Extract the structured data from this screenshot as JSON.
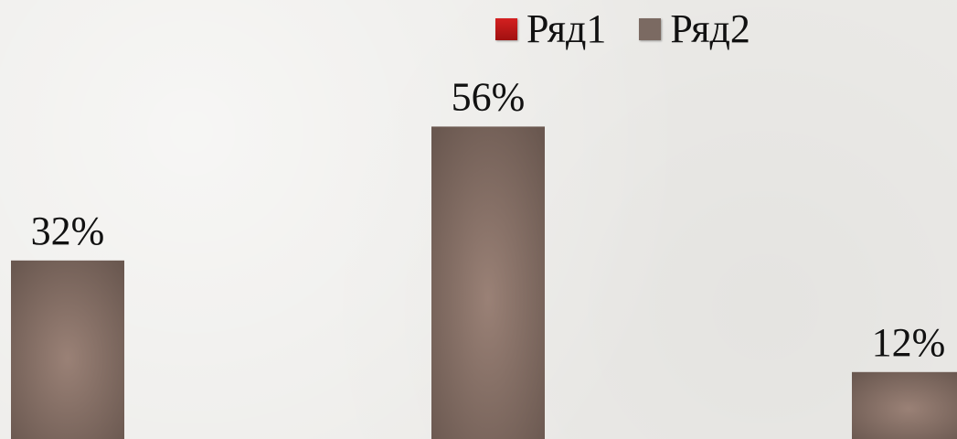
{
  "chart_data": {
    "type": "bar",
    "categories": [
      "",
      "",
      ""
    ],
    "series": [
      {
        "name": "Ряд1",
        "values": [
          null,
          null,
          null
        ],
        "color": "#d42020"
      },
      {
        "name": "Ряд2",
        "values": [
          32,
          56,
          12
        ],
        "color": "#7b6a62"
      }
    ],
    "data_labels": [
      "32%",
      "56%",
      "12%"
    ],
    "unit": "%",
    "ylim": [
      0,
      65
    ],
    "grid": false,
    "legend_position": "top"
  }
}
